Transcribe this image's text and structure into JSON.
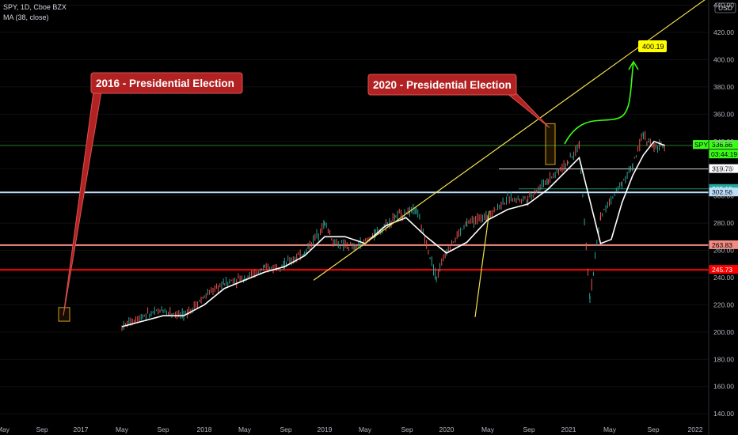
{
  "header": {
    "symbol_line": "SPY, 1D, Cboe BZX",
    "indicator_line": "MA (38, close)",
    "currency": "USD"
  },
  "colors": {
    "background": "#000000",
    "ma_line": "#ffffff",
    "up_candle": "#26a69a",
    "down_candle": "#ef5350",
    "trendline": "#f5e04a",
    "callout_bg": "#b22222",
    "arrow": "#39ff14",
    "target_bg": "#ffff00",
    "level_red": "#ff0000",
    "level_salmon": "#f28b82",
    "level_lightblue": "#bbdefb",
    "level_teal": "#26a69a",
    "level_gray": "#9e9e9e"
  },
  "chart_data": {
    "type": "line",
    "title": "SPY, 1D, Cboe BZX",
    "ylabel": "USD",
    "ylim": [
      136,
      445
    ],
    "y_ticks": [
      140,
      160,
      180,
      200,
      220,
      240,
      260,
      280,
      300,
      320,
      340,
      360,
      380,
      400,
      420,
      440
    ],
    "x_ticks": [
      "May",
      "Sep",
      "2017",
      "May",
      "Sep",
      "2018",
      "May",
      "Sep",
      "2019",
      "May",
      "Sep",
      "2020",
      "May",
      "Sep",
      "2021",
      "May",
      "Sep",
      "2022"
    ],
    "series": [
      {
        "name": "SPY",
        "x": [
          "2016-05",
          "2016-07",
          "2016-09",
          "2016-11",
          "2017-01",
          "2017-03",
          "2017-05",
          "2017-07",
          "2017-09",
          "2017-11",
          "2018-01",
          "2018-02",
          "2018-04",
          "2018-06",
          "2018-08",
          "2018-10",
          "2018-12",
          "2019-01",
          "2019-03",
          "2019-05",
          "2019-07",
          "2019-09",
          "2019-11",
          "2020-01",
          "2020-02",
          "2020-03",
          "2020-04",
          "2020-06",
          "2020-07",
          "2020-08",
          "2020-09",
          "2020-10"
        ],
        "values": [
          204,
          212,
          216,
          212,
          226,
          236,
          240,
          246,
          250,
          258,
          280,
          265,
          262,
          272,
          285,
          290,
          240,
          260,
          280,
          285,
          298,
          298,
          312,
          325,
          337,
          225,
          285,
          310,
          322,
          345,
          335,
          337
        ]
      },
      {
        "name": "MA",
        "x": [
          "2016-05",
          "2016-07",
          "2016-09",
          "2016-11",
          "2017-01",
          "2017-03",
          "2017-05",
          "2017-07",
          "2017-09",
          "2017-11",
          "2018-01",
          "2018-03",
          "2018-05",
          "2018-07",
          "2018-09",
          "2018-11",
          "2019-01",
          "2019-03",
          "2019-05",
          "2019-07",
          "2019-09",
          "2019-11",
          "2020-01",
          "2020-02",
          "2020-04",
          "2020-05",
          "2020-06",
          "2020-07",
          "2020-08",
          "2020-09",
          "2020-10"
        ],
        "values": [
          204,
          208,
          212,
          212,
          220,
          232,
          238,
          244,
          248,
          256,
          270,
          270,
          265,
          278,
          284,
          270,
          258,
          266,
          282,
          290,
          294,
          305,
          320,
          328,
          265,
          268,
          295,
          315,
          330,
          340,
          337
        ]
      }
    ],
    "horizontal_levels": [
      {
        "label": "MA",
        "value": 337.37,
        "price_text": "337.37"
      },
      {
        "label": "SPY",
        "value": 336.86,
        "price_text": "336.86",
        "countdown": "03:44:19"
      },
      {
        "label": "",
        "value": 319.76,
        "price_text": "319.76"
      },
      {
        "label": "",
        "value": 305.15,
        "price_text": "305.15"
      },
      {
        "label": "",
        "value": 302.56,
        "price_text": "302.56"
      },
      {
        "label": "",
        "value": 263.83,
        "price_text": "263.83"
      },
      {
        "label": "",
        "value": 245.73,
        "price_text": "245.73"
      }
    ],
    "annotations": [
      {
        "text": "2016 - Presidential Election",
        "date": "2016-11",
        "price": 212
      },
      {
        "text": "2020 - Presidential Election",
        "date": "2020-11",
        "price": 350
      },
      {
        "text": "400.19",
        "date": "2021-05",
        "price": 400.19
      }
    ]
  }
}
